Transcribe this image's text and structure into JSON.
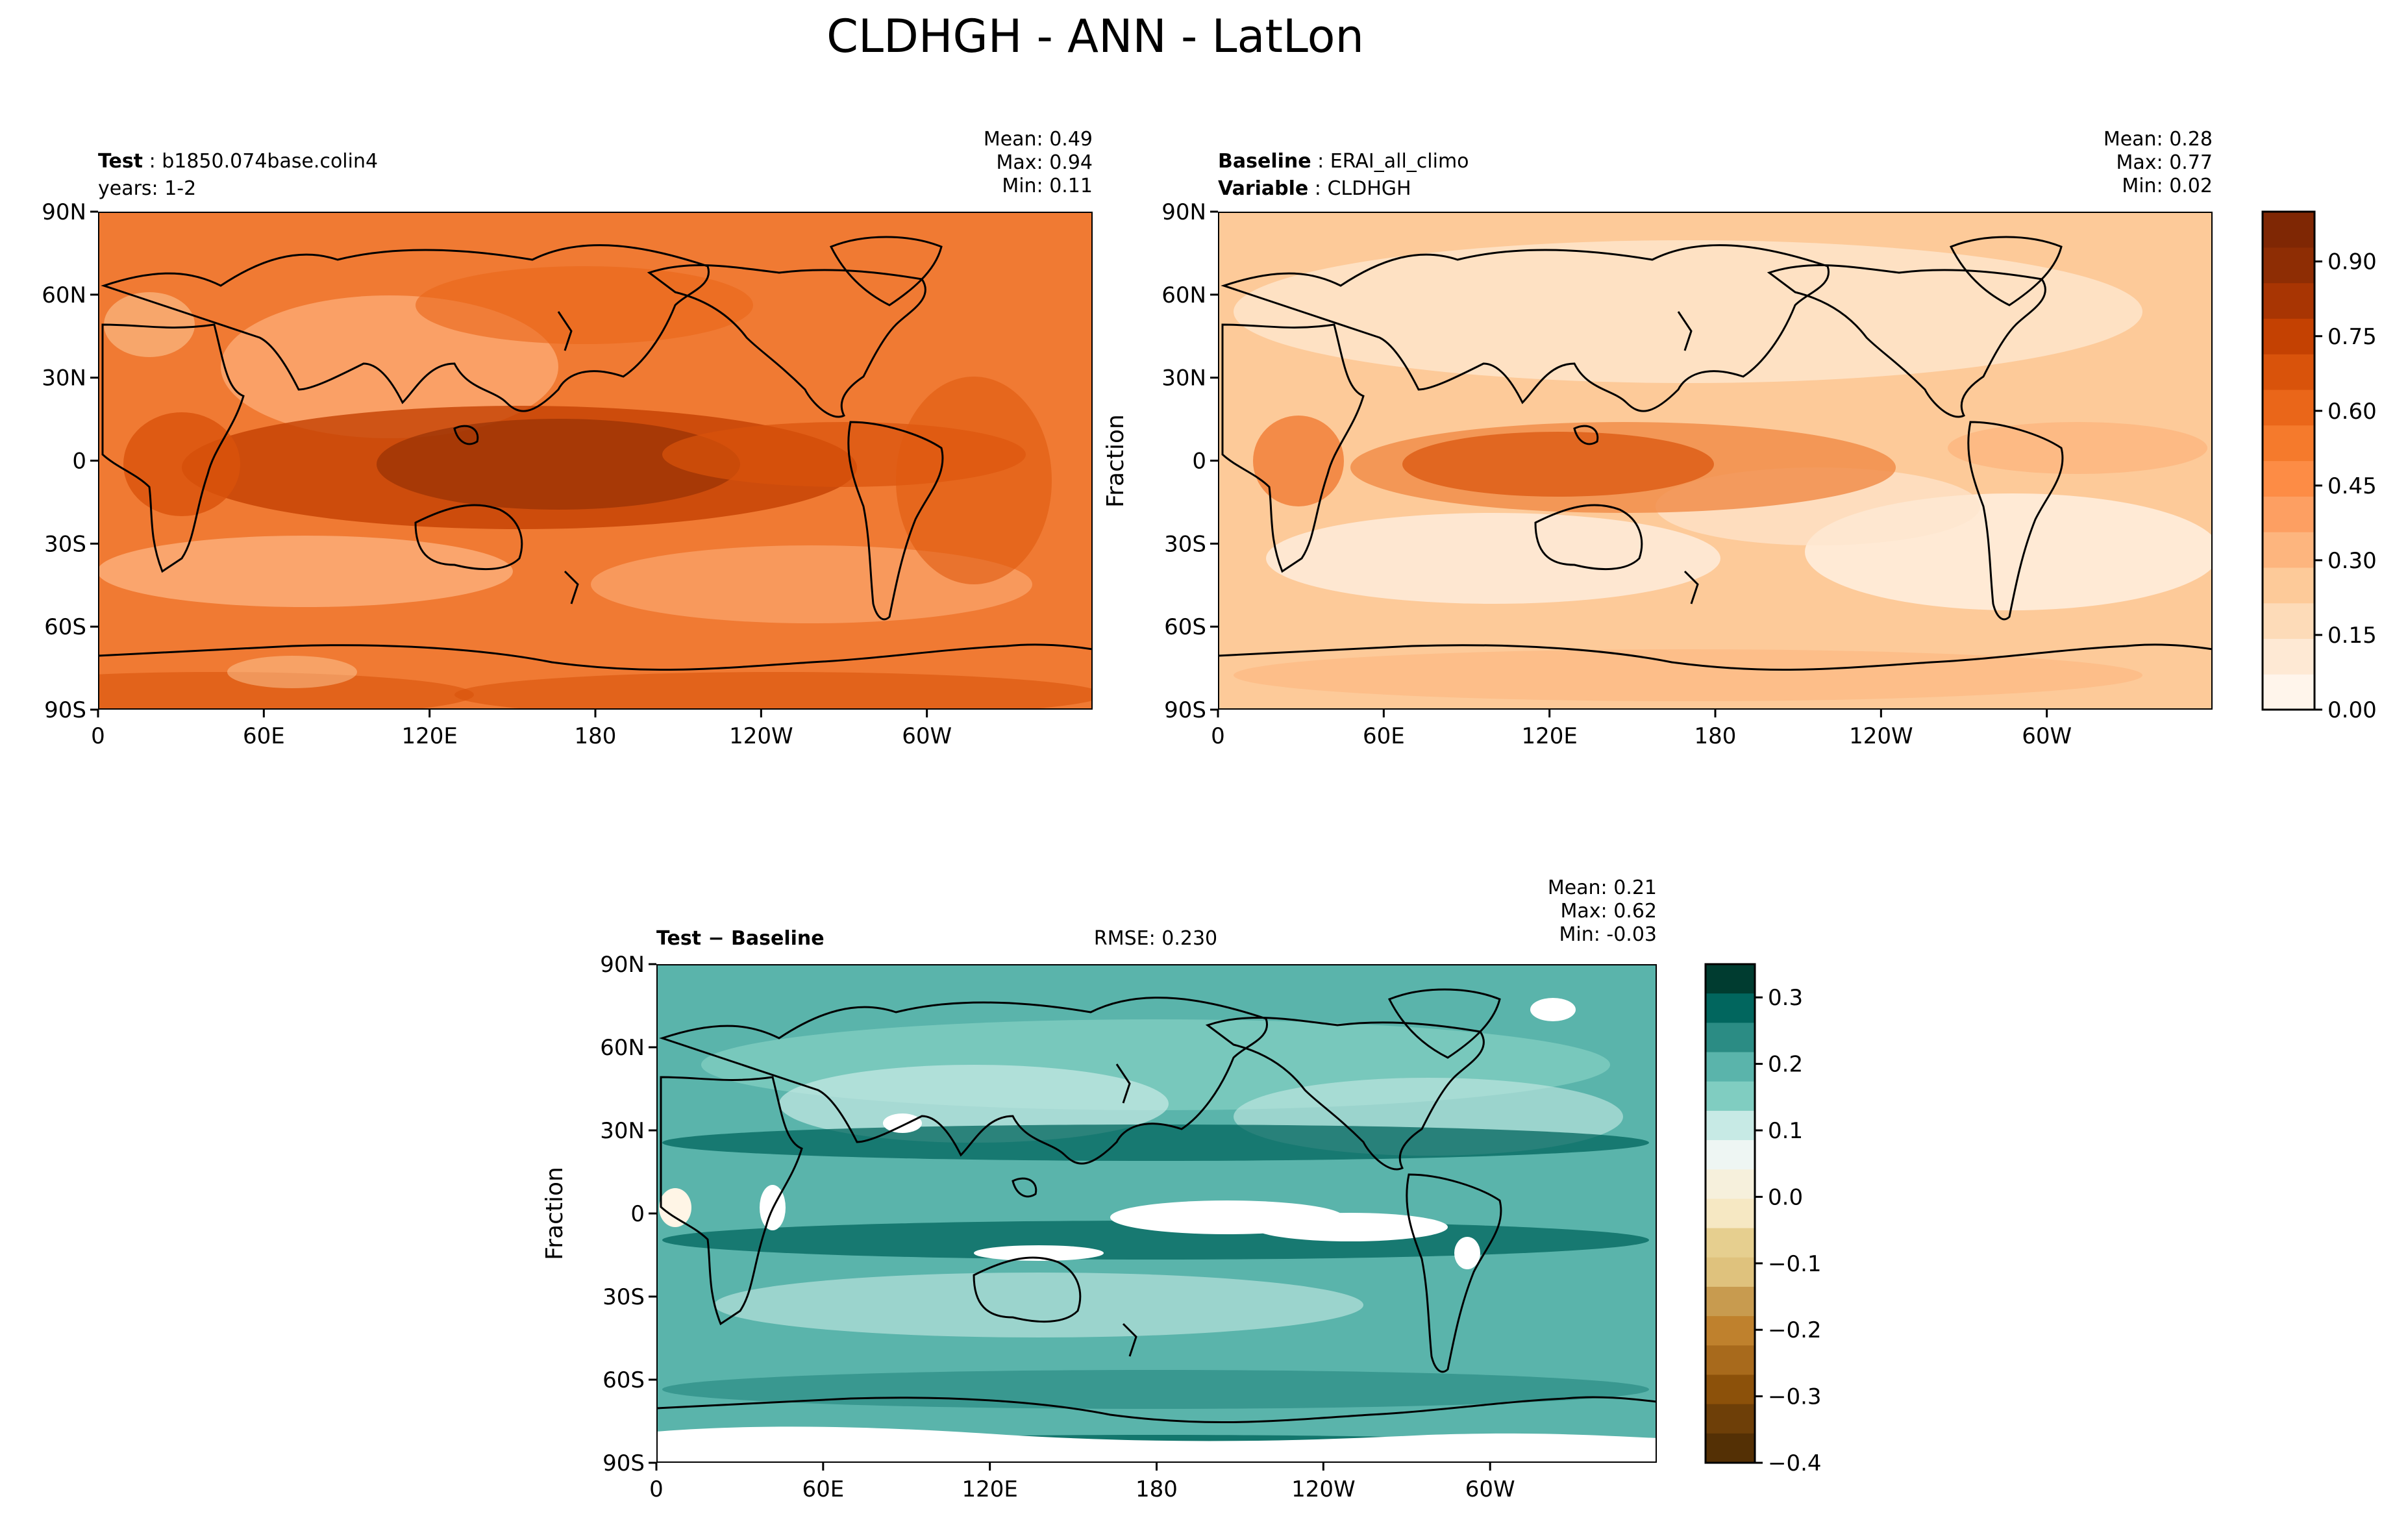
{
  "figure": {
    "title": "CLDHGH - ANN - LatLon"
  },
  "axis_ticks": {
    "lat": [
      "90N",
      "60N",
      "30N",
      "0",
      "30S",
      "60S",
      "90S"
    ],
    "lon": [
      "0",
      "60E",
      "120E",
      "180",
      "120W",
      "60W"
    ]
  },
  "panels": {
    "test": {
      "label_bold": "Test",
      "label_value": "b1850.074base.colin4",
      "line2": "years: 1-2",
      "mean": "Mean:  0.49",
      "max": "Max:  0.94",
      "min": "Min:  0.11"
    },
    "baseline": {
      "label_bold": "Baseline",
      "label_value": "ERAI_all_climo",
      "line2_bold": "Variable",
      "line2_value": "CLDHGH",
      "mean": "Mean:  0.28",
      "max": "Max:  0.77",
      "min": "Min:  0.02",
      "ylabel": "Fraction"
    },
    "diff": {
      "label": "Test − Baseline",
      "rmse": "RMSE: 0.230",
      "mean": "Mean:  0.21",
      "max": "Max:  0.62",
      "min": "Min: -0.03",
      "ylabel": "Fraction"
    }
  },
  "colorbars": {
    "main": {
      "ticks": [
        "0.00",
        "0.15",
        "0.30",
        "0.45",
        "0.60",
        "0.75",
        "0.90"
      ],
      "colors": [
        "#fff5eb",
        "#fee9d4",
        "#fddbb8",
        "#fdca99",
        "#fdb57e",
        "#fd9f62",
        "#fd8c45",
        "#f57a2c",
        "#ea6619",
        "#d9530b",
        "#c44102",
        "#a83503",
        "#8e2d04",
        "#7f2704"
      ]
    },
    "diff": {
      "ticks": [
        "0.3",
        "0.2",
        "0.1",
        "0.0",
        "−0.1",
        "−0.2",
        "−0.3",
        "−0.4"
      ],
      "colors": [
        "#003c30",
        "#01665e",
        "#2b8c84",
        "#5ab4ab",
        "#80cdc1",
        "#c7eae5",
        "#eef6f3",
        "#f6f0dc",
        "#f6e8c3",
        "#e6cf8f",
        "#dfc27d",
        "#c89b4f",
        "#bf812d",
        "#a86a1c",
        "#8c510a",
        "#6e3f08",
        "#543005"
      ]
    }
  },
  "chart_data": [
    {
      "type": "heatmap",
      "panel": "test",
      "variable": "CLDHGH",
      "mean": 0.49,
      "max": 0.94,
      "min": 0.11,
      "xlim": [
        0,
        360
      ],
      "ylim": [
        -90,
        90
      ],
      "colorbar_range": [
        0.0,
        1.0
      ]
    },
    {
      "type": "heatmap",
      "panel": "baseline",
      "variable": "CLDHGH",
      "mean": 0.28,
      "max": 0.77,
      "min": 0.02,
      "xlim": [
        0,
        360
      ],
      "ylim": [
        -90,
        90
      ],
      "colorbar_range": [
        0.0,
        1.0
      ]
    },
    {
      "type": "heatmap",
      "panel": "diff",
      "mean": 0.21,
      "max": 0.62,
      "min": -0.03,
      "rmse": 0.23,
      "xlim": [
        0,
        360
      ],
      "ylim": [
        -90,
        90
      ],
      "colorbar_range": [
        -0.4,
        0.35
      ]
    }
  ]
}
